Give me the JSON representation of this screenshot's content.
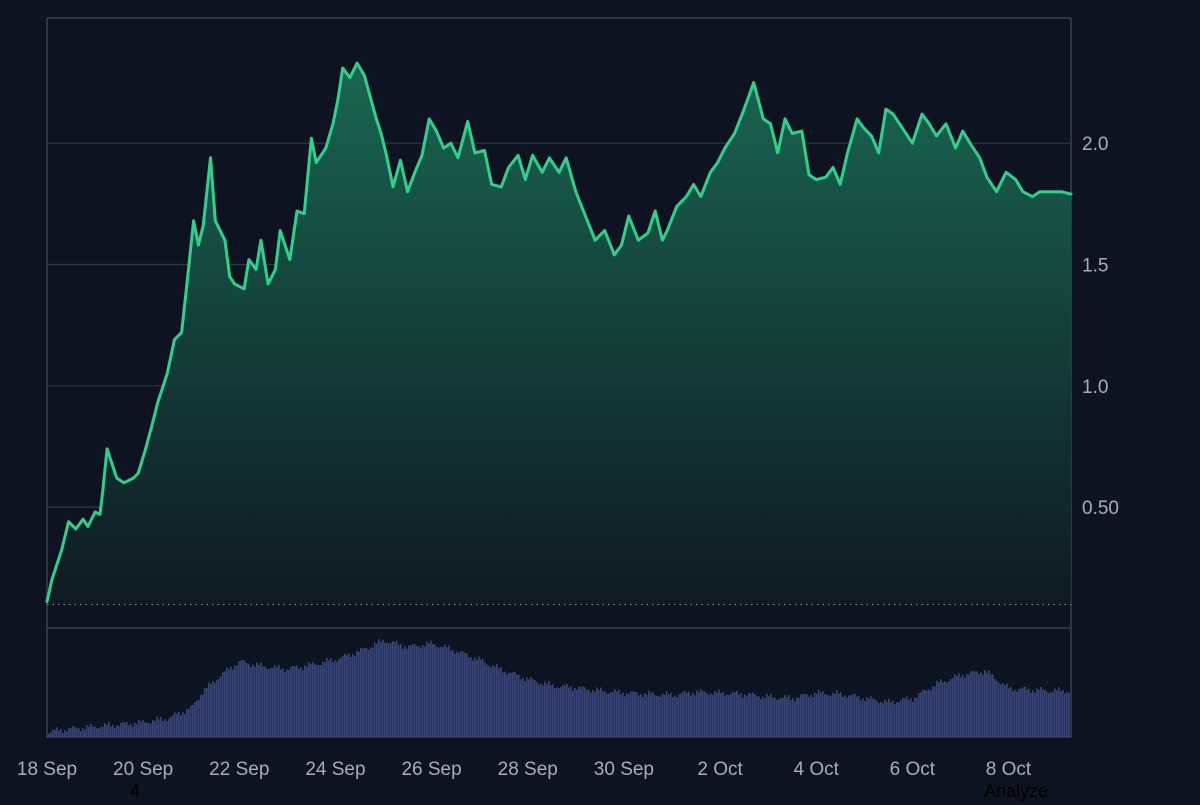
{
  "chart_data": {
    "type": "area",
    "x_start": "18 Sep",
    "x_end": "9 Oct",
    "ylim": [
      0,
      2.5
    ],
    "y_ticks": [
      {
        "value": 0.5,
        "label": "0.50"
      },
      {
        "value": 1.0,
        "label": "1.0"
      },
      {
        "value": 1.5,
        "label": "1.5"
      },
      {
        "value": 2.0,
        "label": "2.0"
      }
    ],
    "x_ticks": [
      {
        "day": 0,
        "label": "18 Sep"
      },
      {
        "day": 2,
        "label": "20 Sep"
      },
      {
        "day": 4,
        "label": "22 Sep"
      },
      {
        "day": 6,
        "label": "24 Sep"
      },
      {
        "day": 8,
        "label": "26 Sep"
      },
      {
        "day": 10,
        "label": "28 Sep"
      },
      {
        "day": 12,
        "label": "30 Sep"
      },
      {
        "day": 14,
        "label": "2 Oct"
      },
      {
        "day": 16,
        "label": "4 Oct"
      },
      {
        "day": 18,
        "label": "6 Oct"
      },
      {
        "day": 20,
        "label": "8 Oct"
      }
    ],
    "baseline": 0.1,
    "price_series": {
      "x": [
        0,
        0.1,
        0.3,
        0.45,
        0.6,
        0.75,
        0.85,
        1.0,
        1.1,
        1.15,
        1.25,
        1.45,
        1.6,
        1.8,
        1.9,
        2.05,
        2.2,
        2.3,
        2.5,
        2.65,
        2.8,
        2.9,
        3.05,
        3.15,
        3.25,
        3.4,
        3.5,
        3.7,
        3.8,
        3.9,
        4.1,
        4.2,
        4.35,
        4.45,
        4.6,
        4.75,
        4.85,
        5.05,
        5.2,
        5.35,
        5.5,
        5.6,
        5.8,
        5.95,
        6.05,
        6.15,
        6.3,
        6.45,
        6.6,
        6.85,
        6.95,
        7.05,
        7.2,
        7.35,
        7.5,
        7.65,
        7.8,
        7.95,
        8.1,
        8.25,
        8.4,
        8.55,
        8.75,
        8.9,
        9.1,
        9.25,
        9.45,
        9.6,
        9.8,
        9.95,
        10.1,
        10.3,
        10.45,
        10.65,
        10.8,
        11.0,
        11.2,
        11.4,
        11.6,
        11.8,
        11.95,
        12.1,
        12.3,
        12.5,
        12.65,
        12.8,
        12.9,
        13.1,
        13.3,
        13.45,
        13.6,
        13.8,
        13.95,
        14.1,
        14.3,
        14.5,
        14.7,
        14.9,
        15.05,
        15.2,
        15.35,
        15.5,
        15.7,
        15.85,
        16.0,
        16.2,
        16.35,
        16.5,
        16.65,
        16.85,
        17.0,
        17.15,
        17.3,
        17.45,
        17.6,
        17.8,
        18.0,
        18.2,
        18.35,
        18.5,
        18.7,
        18.9,
        19.05,
        19.2,
        19.4,
        19.55,
        19.75,
        19.95,
        20.15,
        20.3,
        20.5,
        20.65,
        20.85,
        21.0,
        21.1,
        21.3
      ],
      "y": [
        0.11,
        0.2,
        0.32,
        0.44,
        0.41,
        0.45,
        0.42,
        0.48,
        0.47,
        0.55,
        0.74,
        0.62,
        0.6,
        0.62,
        0.64,
        0.74,
        0.85,
        0.93,
        1.05,
        1.19,
        1.22,
        1.4,
        1.68,
        1.58,
        1.66,
        1.94,
        1.68,
        1.6,
        1.45,
        1.42,
        1.4,
        1.52,
        1.48,
        1.6,
        1.42,
        1.48,
        1.64,
        1.52,
        1.72,
        1.71,
        2.02,
        1.92,
        1.98,
        2.08,
        2.18,
        2.31,
        2.27,
        2.33,
        2.28,
        2.1,
        2.04,
        1.96,
        1.82,
        1.93,
        1.8,
        1.88,
        1.95,
        2.1,
        2.05,
        1.98,
        2.0,
        1.94,
        2.09,
        1.96,
        1.97,
        1.83,
        1.82,
        1.9,
        1.95,
        1.85,
        1.95,
        1.88,
        1.94,
        1.88,
        1.94,
        1.8,
        1.7,
        1.6,
        1.64,
        1.54,
        1.58,
        1.7,
        1.6,
        1.63,
        1.72,
        1.6,
        1.64,
        1.74,
        1.78,
        1.83,
        1.78,
        1.88,
        1.92,
        1.98,
        2.04,
        2.14,
        2.25,
        2.1,
        2.08,
        1.96,
        2.1,
        2.04,
        2.05,
        1.87,
        1.85,
        1.86,
        1.9,
        1.83,
        1.96,
        2.1,
        2.06,
        2.03,
        1.96,
        2.14,
        2.12,
        2.06,
        2.0,
        2.12,
        2.08,
        2.03,
        2.08,
        1.98,
        2.05,
        2.0,
        1.94,
        1.86,
        1.8,
        1.88,
        1.85,
        1.8,
        1.78,
        1.8,
        1.8,
        1.8,
        1.8,
        1.79
      ]
    },
    "volume_series": {
      "x": [
        0,
        0.5,
        1.0,
        1.5,
        2.0,
        2.5,
        3.0,
        3.2,
        3.5,
        3.8,
        4.0,
        4.5,
        5.0,
        5.5,
        6.0,
        6.5,
        7.0,
        7.5,
        8.0,
        8.5,
        9.0,
        9.5,
        10.0,
        10.5,
        11.0,
        11.5,
        12.0,
        12.5,
        13.0,
        13.5,
        14.0,
        14.5,
        15.0,
        15.5,
        16.0,
        16.5,
        17.0,
        17.5,
        18.0,
        18.5,
        19.0,
        19.5,
        20.0,
        20.5,
        21.0,
        21.3
      ],
      "y": [
        0.05,
        0.08,
        0.1,
        0.12,
        0.14,
        0.18,
        0.28,
        0.42,
        0.55,
        0.66,
        0.72,
        0.67,
        0.65,
        0.69,
        0.74,
        0.82,
        0.92,
        0.86,
        0.89,
        0.82,
        0.73,
        0.63,
        0.55,
        0.49,
        0.47,
        0.44,
        0.42,
        0.41,
        0.4,
        0.43,
        0.42,
        0.41,
        0.38,
        0.37,
        0.42,
        0.41,
        0.37,
        0.33,
        0.37,
        0.51,
        0.59,
        0.63,
        0.46,
        0.45,
        0.44,
        0.44
      ]
    }
  },
  "overlays": {
    "bottom_number": "4",
    "bottom_word": "Analyze"
  },
  "colors": {
    "background": "#0d1320",
    "price_line": "#2ed18c",
    "area_top": "#1a6b54",
    "area_bottom": "#0f1a23",
    "volume": "#3b4676"
  }
}
